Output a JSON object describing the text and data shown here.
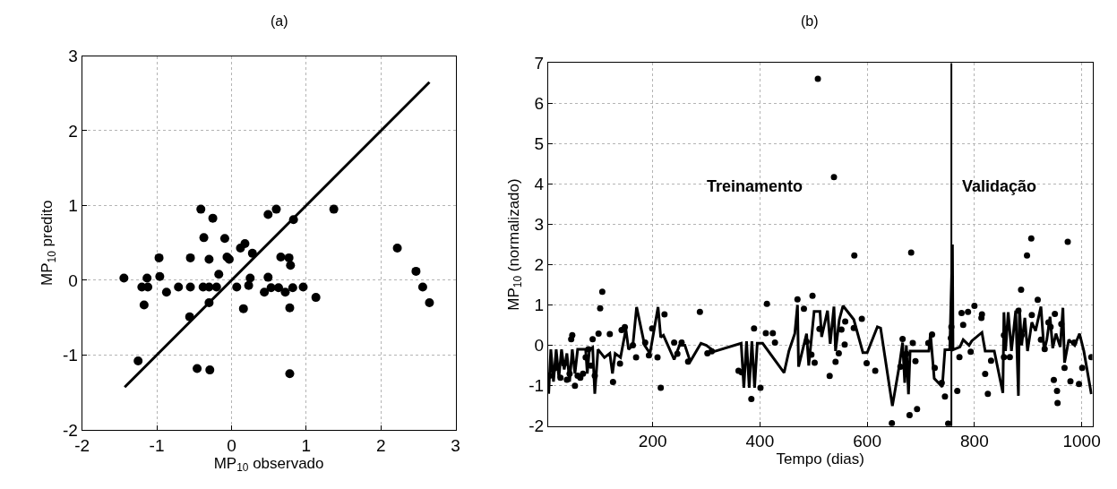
{
  "chart_data": [
    {
      "type": "scatter",
      "title": "(a)",
      "xlabel": "MP$_{10}$ observado",
      "ylabel": "MP$_{10}$ predito",
      "xlim": [
        -2,
        3
      ],
      "ylim": [
        -2,
        3
      ],
      "xticks": [
        -2,
        -1,
        0,
        1,
        2,
        3
      ],
      "yticks": [
        -2,
        -1,
        0,
        1,
        2,
        3
      ],
      "grid": true,
      "series": [
        {
          "marker": "circle",
          "color": "#000000",
          "x": [
            -1.44,
            -1.13,
            -1.2,
            -1.12,
            -1.17,
            -1.25,
            -0.97,
            -0.96,
            -0.87,
            -0.71,
            -0.55,
            -0.55,
            -0.41,
            -0.25,
            -0.37,
            -0.3,
            -0.38,
            -0.3,
            -0.2,
            -0.17,
            -0.3,
            -0.56,
            -0.46,
            -0.29,
            -0.09,
            -0.06,
            -0.03,
            0.07,
            0.12,
            0.18,
            0.28,
            0.25,
            0.23,
            0.16,
            0.44,
            0.49,
            0.6,
            0.49,
            0.53,
            0.63,
            0.72,
            0.82,
            0.96,
            0.66,
            0.77,
            0.79,
            0.83,
            0.78,
            0.78,
            1.13,
            1.37,
            2.22,
            2.47,
            2.56,
            2.65
          ],
          "values": [
            0.03,
            0.03,
            -0.09,
            -0.09,
            -0.33,
            -1.08,
            0.3,
            0.05,
            -0.16,
            -0.09,
            -0.09,
            0.3,
            0.95,
            0.83,
            0.57,
            0.28,
            -0.09,
            -0.09,
            -0.09,
            0.08,
            -0.3,
            -0.49,
            -1.18,
            -1.2,
            0.56,
            0.31,
            0.28,
            -0.09,
            0.43,
            0.49,
            0.36,
            0.03,
            -0.07,
            -0.38,
            -0.16,
            0.88,
            0.95,
            0.04,
            -0.1,
            -0.1,
            -0.16,
            -0.1,
            -0.09,
            0.31,
            0.3,
            0.2,
            0.81,
            -0.37,
            -1.25,
            -0.23,
            0.95,
            0.43,
            0.12,
            -0.09,
            -0.3
          ]
        },
        {
          "type": "line",
          "marker": "none",
          "line_style": "solid",
          "color": "#000000",
          "x": [
            -1.43,
            2.65
          ],
          "values": [
            -1.43,
            2.65
          ]
        }
      ]
    },
    {
      "type": "scatter",
      "title": "(b)",
      "xlabel": "Tempo (dias)",
      "ylabel": "MP$_{10}$ (normalizado)",
      "xlim": [
        5,
        1020
      ],
      "ylim": [
        -2,
        7
      ],
      "xticks": [
        200,
        400,
        600,
        800,
        1000
      ],
      "yticks": [
        -2,
        -1,
        0,
        1,
        2,
        3,
        4,
        5,
        6,
        7
      ],
      "grid": true,
      "annotations": [
        "Treinamento",
        "Validação"
      ],
      "ref_lines": [
        {
          "axis": "x",
          "value": 757,
          "color": "#000000",
          "line_style": "solid"
        }
      ],
      "series": [
        {
          "marker": "circle",
          "color": "#000000",
          "x": [
            8,
            14,
            20,
            28,
            35,
            40,
            45,
            48,
            50,
            55,
            60,
            65,
            70,
            75,
            80,
            85,
            88,
            92,
            99,
            102,
            106,
            120,
            126,
            139,
            142,
            148,
            163,
            169,
            186,
            193,
            199,
            209,
            215,
            222,
            240,
            246,
            254,
            266,
            288,
            302,
            310,
            360,
            366,
            384,
            389,
            401,
            411,
            413,
            424,
            428,
            470,
            482,
            487,
            496,
            498,
            502,
            508,
            511,
            530,
            538,
            541,
            547,
            552,
            558,
            559,
            575,
            576,
            590,
            599,
            615,
            646,
            662,
            666,
            673,
            679,
            682,
            685,
            690,
            693,
            714,
            721,
            726,
            739,
            745,
            751,
            756,
            757,
            768,
            772,
            776,
            779,
            788,
            793,
            800,
            813,
            814,
            820,
            825,
            831,
            855,
            855,
            866,
            882,
            887,
            888,
            898,
            906,
            907,
            918,
            924,
            931,
            938,
            942,
            948,
            950,
            954,
            955,
            962,
            968,
            974,
            979,
            986,
            995,
            1001,
            1018
          ],
          "values": [
            -0.75,
            -0.6,
            -0.55,
            -0.8,
            -0.45,
            -0.85,
            -0.7,
            0.15,
            0.25,
            -1.0,
            -0.75,
            -0.8,
            -0.7,
            -0.3,
            -0.1,
            -0.5,
            0.15,
            -0.75,
            0.29,
            0.92,
            1.33,
            0.28,
            -0.91,
            -0.45,
            0.38,
            0.45,
            0.0,
            -0.3,
            0.07,
            -0.25,
            0.42,
            -0.3,
            -1.05,
            0.77,
            0.07,
            -0.21,
            0.07,
            -0.4,
            0.83,
            -0.2,
            -0.15,
            -0.63,
            -0.67,
            -1.33,
            0.42,
            -1.05,
            0.3,
            1.03,
            0.3,
            0.07,
            1.14,
            0.91,
            0.09,
            -0.23,
            1.23,
            -0.43,
            6.61,
            0.41,
            -0.76,
            4.17,
            -0.41,
            -0.2,
            0.39,
            0.02,
            0.59,
            0.43,
            2.23,
            0.66,
            -0.44,
            -0.63,
            -1.93,
            -0.53,
            0.16,
            -0.21,
            -1.73,
            2.3,
            0.06,
            -0.39,
            -1.58,
            0.06,
            0.27,
            -0.56,
            -0.93,
            -1.27,
            -1.94,
            0.18,
            0.46,
            -1.13,
            -0.29,
            0.8,
            0.51,
            0.83,
            -0.16,
            0.98,
            0.68,
            0.77,
            -0.71,
            -1.2,
            -0.38,
            0.25,
            -0.29,
            -0.29,
            0.86,
            1.38,
            0.25,
            2.23,
            2.65,
            0.75,
            1.13,
            0.14,
            -0.09,
            0.57,
            0.46,
            -0.86,
            0.78,
            -1.13,
            -1.43,
            0.53,
            -0.56,
            2.57,
            -0.89,
            0.07,
            -0.96,
            -0.56,
            -0.29
          ]
        },
        {
          "type": "line",
          "marker": "none",
          "line_style": "solid",
          "color": "#000000",
          "x": [
            6,
            10,
            15,
            20,
            25,
            30,
            35,
            40,
            45,
            50,
            55,
            60,
            75,
            78,
            82,
            88,
            92,
            98,
            110,
            120,
            125,
            130,
            140,
            150,
            155,
            163,
            170,
            185,
            195,
            210,
            215,
            220,
            240,
            250,
            260,
            270,
            290,
            300,
            315,
            365,
            370,
            375,
            380,
            385,
            390,
            395,
            405,
            445,
            454,
            465,
            470,
            472,
            487,
            491,
            501,
            512,
            515,
            526,
            531,
            538,
            541,
            548,
            555,
            575,
            592,
            600,
            619,
            625,
            647,
            660,
            666,
            670,
            673,
            677,
            680,
            685,
            715,
            718,
            725,
            740,
            745,
            754,
            759,
            760,
            773,
            779,
            790,
            795,
            814,
            820,
            837,
            853,
            855,
            858,
            863,
            869,
            877,
            882,
            884,
            888,
            894,
            899,
            907,
            914,
            924,
            930,
            935,
            941,
            946,
            952,
            960,
            965,
            968,
            976,
            987,
            996,
            1004,
            1018
          ],
          "values": [
            -1.2,
            -0.1,
            -0.9,
            -0.1,
            -0.8,
            -0.1,
            -0.6,
            -0.2,
            -0.9,
            -0.1,
            -0.7,
            -0.1,
            -0.1,
            -0.7,
            -0.1,
            -0.05,
            -1.2,
            -0.1,
            -0.3,
            -0.2,
            -0.7,
            -0.2,
            -0.3,
            0.4,
            -0.1,
            0.0,
            0.95,
            0.0,
            -0.2,
            0.95,
            0.2,
            0.25,
            -0.35,
            0.0,
            0.0,
            -0.4,
            0.05,
            0.0,
            -0.15,
            0.05,
            -1.05,
            0.1,
            -1.05,
            0.1,
            -1.05,
            0.05,
            0.05,
            -0.68,
            -0.14,
            0.29,
            1.0,
            -0.53,
            0.29,
            -0.5,
            0.84,
            0.84,
            0.21,
            0.86,
            0.04,
            0.96,
            -0.14,
            0.64,
            0.98,
            0.64,
            -0.18,
            -0.18,
            0.46,
            0.43,
            -1.5,
            -0.5,
            0.07,
            -0.93,
            0.0,
            -1.21,
            -0.14,
            -0.14,
            -0.14,
            0.29,
            -0.82,
            -1.03,
            -0.11,
            -0.11,
            2.5,
            -0.11,
            -0.04,
            0.14,
            0.0,
            0.11,
            0.32,
            -0.14,
            -0.14,
            -1.18,
            0.82,
            -0.14,
            0.82,
            -0.14,
            0.86,
            -1.25,
            0.93,
            0.0,
            0.68,
            -0.14,
            0.57,
            0.36,
            0.96,
            -0.14,
            0.14,
            0.71,
            -0.07,
            0.29,
            -0.04,
            0.93,
            -0.43,
            0.14,
            0.0,
            0.29,
            -0.14,
            -1.21
          ]
        }
      ]
    }
  ]
}
